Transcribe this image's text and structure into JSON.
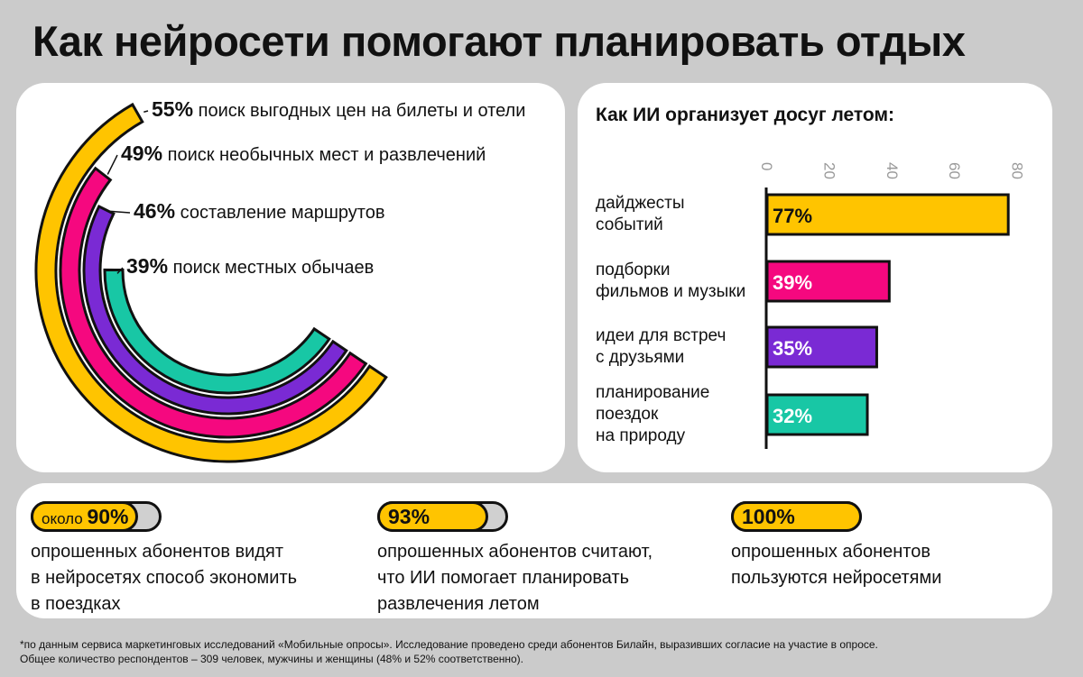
{
  "title": "Как нейросети помогают планировать отдых",
  "colors": {
    "yellow": "#ffc400",
    "pink": "#f5087f",
    "purple": "#7a2ad4",
    "teal": "#18c7a5",
    "background": "#cbcbcb"
  },
  "chart_data": [
    {
      "type": "radial-bar",
      "series": [
        {
          "value": 55,
          "label": "55%",
          "text": "поиск выгодных цен на билеты и отели",
          "color": "#ffc400"
        },
        {
          "value": 49,
          "label": "49%",
          "text": "поиск необычных мест и развлечений",
          "color": "#f5087f"
        },
        {
          "value": 46,
          "label": "46%",
          "text": "составление маршрутов",
          "color": "#7a2ad4"
        },
        {
          "value": 39,
          "label": "39%",
          "text": "поиск местных обычаев",
          "color": "#18c7a5"
        }
      ]
    },
    {
      "type": "bar",
      "orientation": "horizontal",
      "title": "Как ИИ организует досуг летом:",
      "xlim": [
        0,
        80
      ],
      "xticks": [
        "0",
        "20",
        "40",
        "60",
        "80"
      ],
      "categories": [
        [
          "дайджесты",
          "событий"
        ],
        [
          "подборки",
          "фильмов и музыки"
        ],
        [
          "идеи для встреч",
          "с друзьями"
        ],
        [
          "планирование",
          "поездок",
          "на природу"
        ]
      ],
      "values": [
        77,
        39,
        35,
        32
      ],
      "labels": [
        "77%",
        "39%",
        "35%",
        "32%"
      ],
      "bar_colors": [
        "#ffc400",
        "#f5087f",
        "#7a2ad4",
        "#18c7a5"
      ],
      "grid": false
    }
  ],
  "stats": [
    {
      "prefix": "около ",
      "value_label": "90%",
      "value": 90,
      "lines": [
        "опрошенных абонентов видят",
        "в нейросетях способ экономить",
        "в поездках"
      ]
    },
    {
      "prefix": "",
      "value_label": "93%",
      "value": 93,
      "lines": [
        "опрошенных абонентов считают,",
        "что ИИ помогает планировать",
        "развлечения летом"
      ]
    },
    {
      "prefix": "",
      "value_label": "100%",
      "value": 100,
      "lines": [
        "опрошенных абонентов",
        "пользуются нейросетями"
      ]
    }
  ],
  "footnote": [
    "*по данным сервиса маркетинговых исследований «Мобильные опросы». Исследование проведено среди абонентов Билайн, выразивших согласие на участие в опросе.",
    "Общее количество респондентов – 309 человек, мужчины и женщины (48% и 52% соответственно)."
  ]
}
